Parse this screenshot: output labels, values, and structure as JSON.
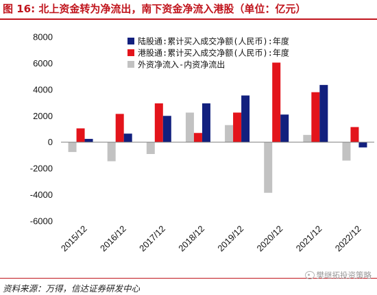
{
  "figure": {
    "title": "图 16: 北上资金转为净流出，南下资金净流入港股（单位：亿元）",
    "source": "资料来源：万得，信达证券研发中心",
    "watermark": "樊继拓投资策略"
  },
  "colors": {
    "accent": "#c0141c",
    "north": "#12207e",
    "south": "#e3141b",
    "foreign": "#c2c2c2"
  },
  "chart_data": {
    "type": "bar",
    "categories": [
      "2015/12",
      "2016/12",
      "2017/12",
      "2018/12",
      "2019/12",
      "2020/12",
      "2021/12",
      "2022/12"
    ],
    "series": [
      {
        "name": "陆股通:累计买入成交净额(人民币):年度",
        "color": "#12207e",
        "values": [
          250,
          650,
          2000,
          2950,
          3550,
          2100,
          4350,
          -400
        ]
      },
      {
        "name": "港股通:累计买入成交净额(人民币):年度",
        "color": "#e3141b",
        "values": [
          1050,
          2150,
          2950,
          700,
          2250,
          6050,
          3800,
          1150
        ]
      },
      {
        "name": "外资净流入-内资净流出",
        "color": "#c2c2c2",
        "values": [
          -750,
          -1450,
          -900,
          2250,
          1300,
          -3850,
          550,
          -1400
        ]
      }
    ],
    "bar_order": [
      2,
      1,
      0
    ],
    "y_ticks": [
      8000,
      6000,
      4000,
      2000,
      0,
      -2000,
      -4000,
      -6000
    ],
    "ylim": [
      -6000,
      8000
    ],
    "grid": false,
    "legend_position": "top-right"
  }
}
